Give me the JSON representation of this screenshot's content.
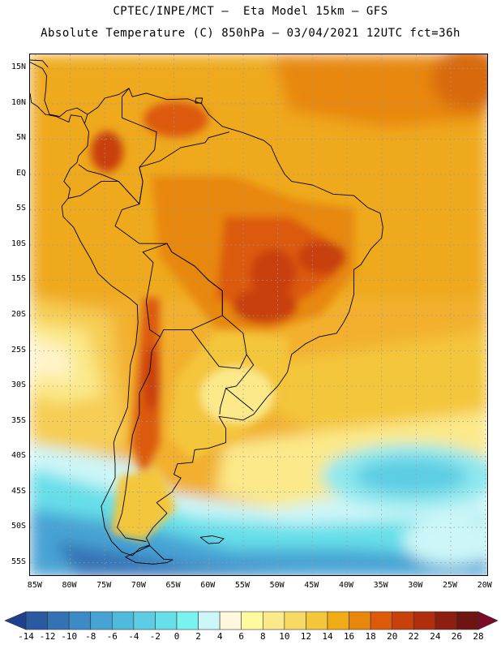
{
  "title": {
    "line1": "CPTEC/INPE/MCT –  Eta Model 15km – GFS",
    "line2": "Absolute Temperature (C) 850hPa – 03/04/2021 12UTC fct=36h"
  },
  "map": {
    "lat_labels": [
      "15N",
      "10N",
      "5N",
      "EQ",
      "5S",
      "10S",
      "15S",
      "20S",
      "25S",
      "30S",
      "35S",
      "40S",
      "45S",
      "50S",
      "55S"
    ],
    "lon_labels": [
      "85W",
      "80W",
      "75W",
      "70W",
      "65W",
      "60W",
      "55W",
      "50W",
      "45W",
      "40W",
      "35W",
      "30W",
      "25W",
      "20W"
    ],
    "lat_range": [
      17,
      -57
    ],
    "lon_range": [
      -85.8,
      -19.5
    ],
    "projection": "cylindrical equidistant"
  },
  "colorbar": {
    "ticks": [
      "-14",
      "-12",
      "-10",
      "-8",
      "-6",
      "-4",
      "-2",
      "0",
      "2",
      "4",
      "6",
      "8",
      "10",
      "12",
      "14",
      "16",
      "18",
      "20",
      "22",
      "24",
      "26",
      "28"
    ],
    "colors": [
      "#1f3f8f",
      "#2a5aa0",
      "#3472b5",
      "#3c8bc6",
      "#46a3d4",
      "#4fbadc",
      "#5ccde3",
      "#66dfe9",
      "#7af2ef",
      "#ccf6f8",
      "#fff8dc",
      "#fffaa0",
      "#fbe98a",
      "#f7d963",
      "#f4c63a",
      "#efac14",
      "#e8870c",
      "#dc5a0a",
      "#c8400c",
      "#b02e0c",
      "#8c1f10",
      "#6e1512",
      "#7a0a26"
    ],
    "unit": "C"
  }
}
